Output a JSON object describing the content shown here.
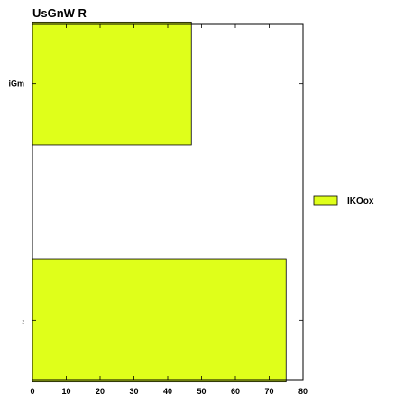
{
  "chart_data": {
    "type": "bar",
    "orientation": "horizontal",
    "title": "UsGnW  R",
    "xlabel": "",
    "ylabel": "",
    "categories": [
      "iGm",
      "z"
    ],
    "series": [
      {
        "name": "IKOox",
        "values": [
          47,
          75
        ],
        "color": "#dfff1a"
      }
    ],
    "xlim": [
      0,
      80
    ],
    "x_ticks": [
      0,
      10,
      20,
      30,
      40,
      50,
      60,
      70,
      80
    ],
    "grid": false,
    "legend_position": "right"
  }
}
